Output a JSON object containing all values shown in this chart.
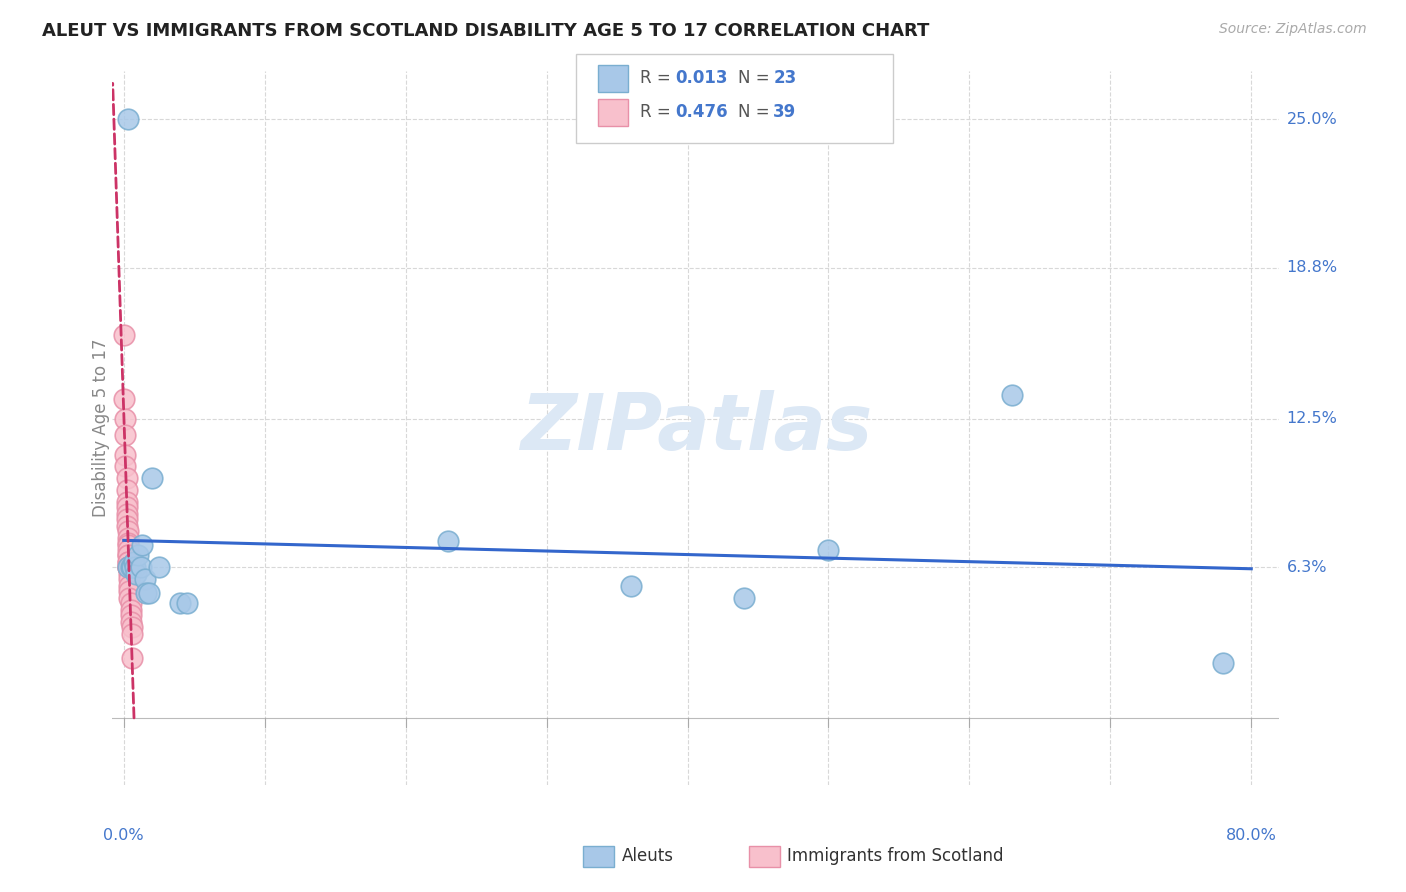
{
  "title": "ALEUT VS IMMIGRANTS FROM SCOTLAND DISABILITY AGE 5 TO 17 CORRELATION CHART",
  "source": "Source: ZipAtlas.com",
  "ylabel": "Disability Age 5 to 17",
  "ytick_values": [
    0.063,
    0.125,
    0.188,
    0.25
  ],
  "ytick_labels": [
    "6.3%",
    "12.5%",
    "18.8%",
    "25.0%"
  ],
  "xtick_values": [
    0.0,
    0.8
  ],
  "xtick_labels": [
    "0.0%",
    "80.0%"
  ],
  "xlim": [
    -0.008,
    0.82
  ],
  "ylim": [
    -0.028,
    0.27
  ],
  "plot_xlim": [
    0.0,
    0.8
  ],
  "plot_ylim": [
    0.0,
    0.26
  ],
  "aleuts_color": "#a8c8e8",
  "aleuts_edge_color": "#7aaed0",
  "scotland_color": "#f8c0cc",
  "scotland_edge_color": "#e890a8",
  "trendline_aleuts_color": "#3366cc",
  "trendline_scotland_color": "#cc3366",
  "watermark_color": "#dce8f5",
  "grid_color": "#d8d8d8",
  "axis_label_color": "#4477cc",
  "text_color": "#333333",
  "aleuts_R": "0.013",
  "aleuts_N": "23",
  "scotland_R": "0.476",
  "scotland_N": "39",
  "legend_label1": "Aleuts",
  "legend_label2": "Immigrants from Scotland",
  "aleuts_x": [
    0.003,
    0.003,
    0.005,
    0.006,
    0.007,
    0.008,
    0.009,
    0.01,
    0.012,
    0.013,
    0.015,
    0.016,
    0.018,
    0.02,
    0.025,
    0.04,
    0.045,
    0.23,
    0.36,
    0.44,
    0.5,
    0.63,
    0.78
  ],
  "aleuts_y": [
    0.25,
    0.063,
    0.063,
    0.063,
    0.065,
    0.063,
    0.06,
    0.068,
    0.063,
    0.072,
    0.058,
    0.052,
    0.052,
    0.1,
    0.063,
    0.048,
    0.048,
    0.074,
    0.055,
    0.05,
    0.07,
    0.135,
    0.023
  ],
  "scotland_x": [
    0.0,
    0.0,
    0.001,
    0.001,
    0.001,
    0.001,
    0.002,
    0.002,
    0.002,
    0.002,
    0.002,
    0.002,
    0.002,
    0.003,
    0.003,
    0.003,
    0.003,
    0.003,
    0.003,
    0.003,
    0.003,
    0.003,
    0.003,
    0.003,
    0.003,
    0.004,
    0.004,
    0.004,
    0.004,
    0.004,
    0.004,
    0.004,
    0.005,
    0.005,
    0.005,
    0.005,
    0.006,
    0.006,
    0.006
  ],
  "scotland_y": [
    0.16,
    0.133,
    0.125,
    0.118,
    0.11,
    0.105,
    0.1,
    0.095,
    0.09,
    0.088,
    0.085,
    0.083,
    0.08,
    0.078,
    0.075,
    0.073,
    0.072,
    0.07,
    0.068,
    0.068,
    0.065,
    0.065,
    0.063,
    0.063,
    0.063,
    0.063,
    0.063,
    0.06,
    0.058,
    0.055,
    0.053,
    0.05,
    0.048,
    0.045,
    0.043,
    0.04,
    0.038,
    0.035,
    0.025
  ]
}
